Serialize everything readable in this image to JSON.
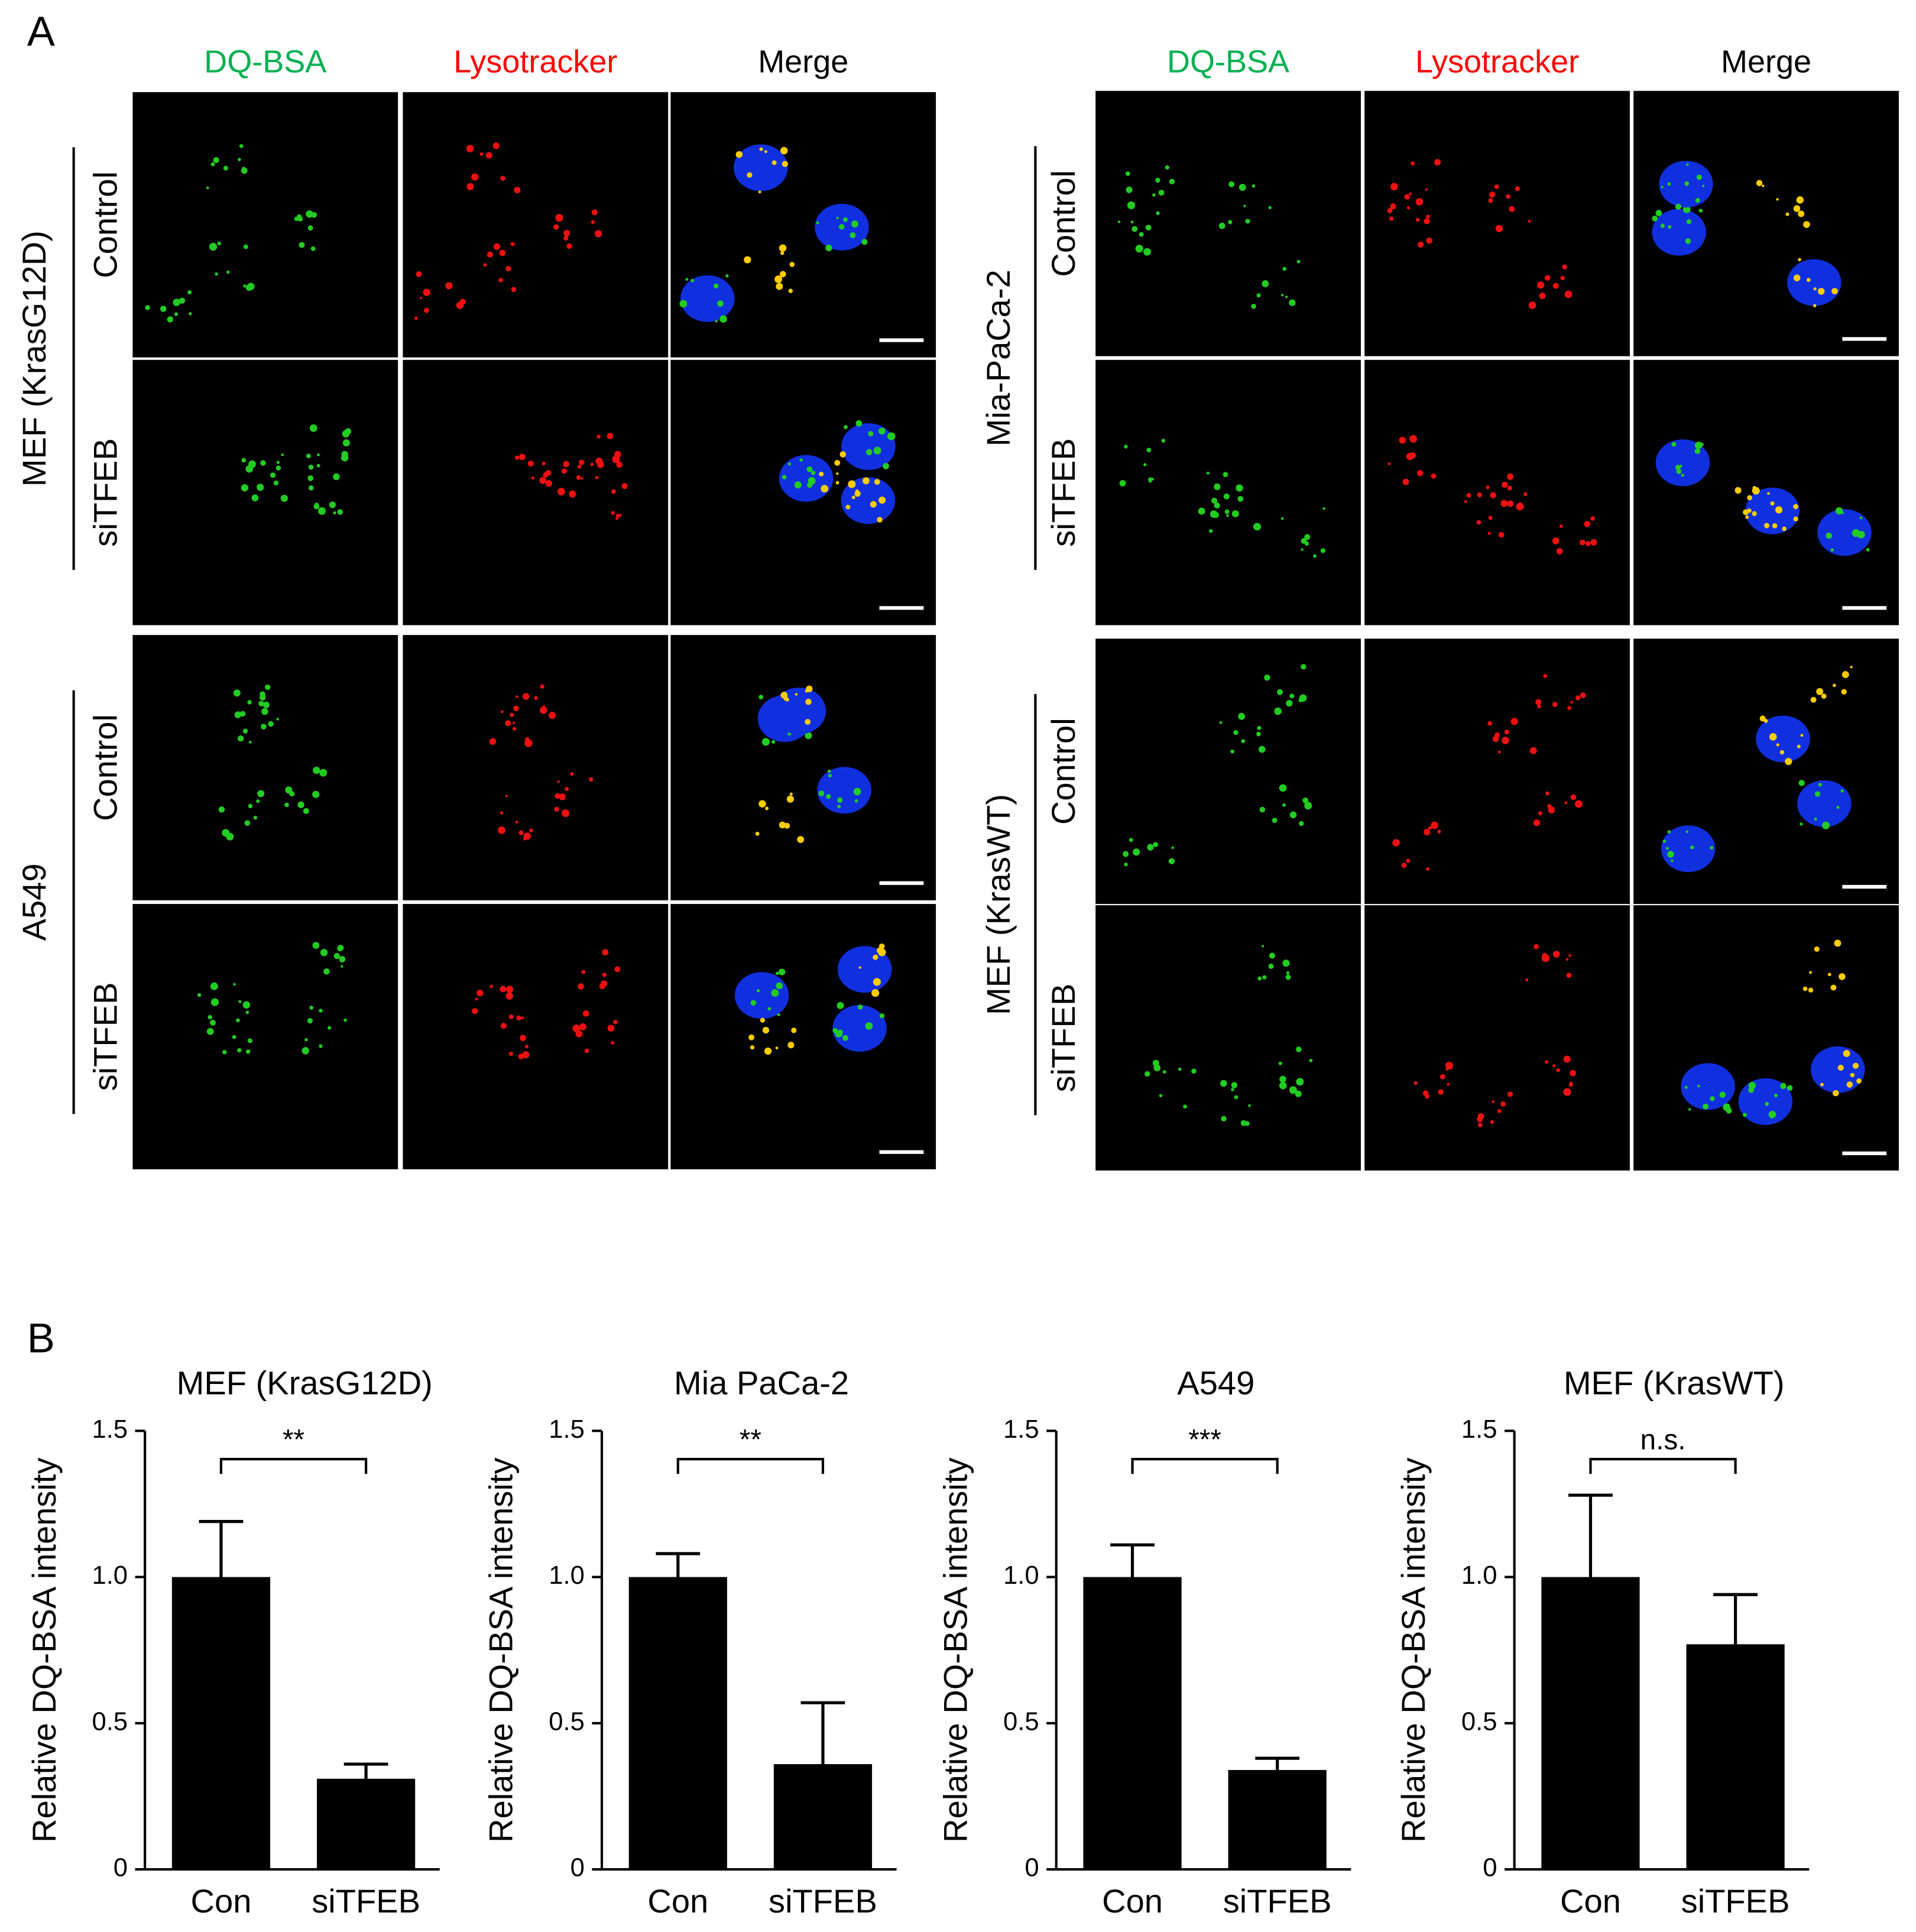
{
  "panel_a": {
    "label": "A",
    "columns": [
      "DQ-BSA",
      "Lysotracker",
      "Merge"
    ],
    "groups": [
      {
        "name": "MEF (KrasG12D)",
        "rows": [
          "Control",
          "siTFEB"
        ]
      },
      {
        "name": "Mia-PaCa-2",
        "rows": [
          "Control",
          "siTFEB"
        ]
      },
      {
        "name": "A549",
        "rows": [
          "Control",
          "siTFEB"
        ]
      },
      {
        "name": "MEF (KrasWT)",
        "rows": [
          "Control",
          "siTFEB"
        ]
      }
    ]
  },
  "panel_b": {
    "label": "B"
  },
  "chart_data": [
    {
      "type": "bar",
      "title": "MEF (KrasG12D)",
      "ylabel": "Relative DQ-BSA intensity",
      "categories": [
        "Con",
        "siTFEB"
      ],
      "values": [
        1.0,
        0.31
      ],
      "errors": [
        0.19,
        0.05
      ],
      "color": "#000000",
      "significance": "**",
      "ylim": [
        0,
        1.5
      ],
      "yticks": [
        0,
        0.5,
        {
          "value": 1,
          "label": "1.0"
        },
        1.5
      ]
    },
    {
      "type": "bar",
      "title": "Mia PaCa-2",
      "ylabel": "Relative DQ-BSA intensity",
      "categories": [
        "Con",
        "siTFEB"
      ],
      "values": [
        1.0,
        0.36
      ],
      "errors": [
        0.08,
        0.21
      ],
      "color": "#000000",
      "significance": "**",
      "ylim": [
        0,
        1.5
      ],
      "yticks": [
        0,
        0.5,
        {
          "value": 1,
          "label": "1.0"
        },
        1.5
      ]
    },
    {
      "type": "bar",
      "title": "A549",
      "ylabel": "Relative DQ-BSA intensity",
      "categories": [
        "Con",
        "siTFEB"
      ],
      "values": [
        1.0,
        0.34
      ],
      "errors": [
        0.11,
        0.04
      ],
      "color": "#000000",
      "significance": "***",
      "ylim": [
        0,
        1.5
      ],
      "yticks": [
        0,
        0.5,
        {
          "value": 1,
          "label": "1.0"
        },
        1.5
      ]
    },
    {
      "type": "bar",
      "title": "MEF (KrasWT)",
      "ylabel": "Relative DQ-BSA intensity",
      "categories": [
        "Con",
        "siTFEB"
      ],
      "values": [
        1.0,
        0.77
      ],
      "errors": [
        0.28,
        0.17
      ],
      "color": "#000000",
      "significance": "n.s.",
      "ylim": [
        0,
        1.5
      ],
      "yticks": [
        0,
        0.5,
        {
          "value": 1,
          "label": "1.0"
        },
        1.5
      ]
    }
  ]
}
